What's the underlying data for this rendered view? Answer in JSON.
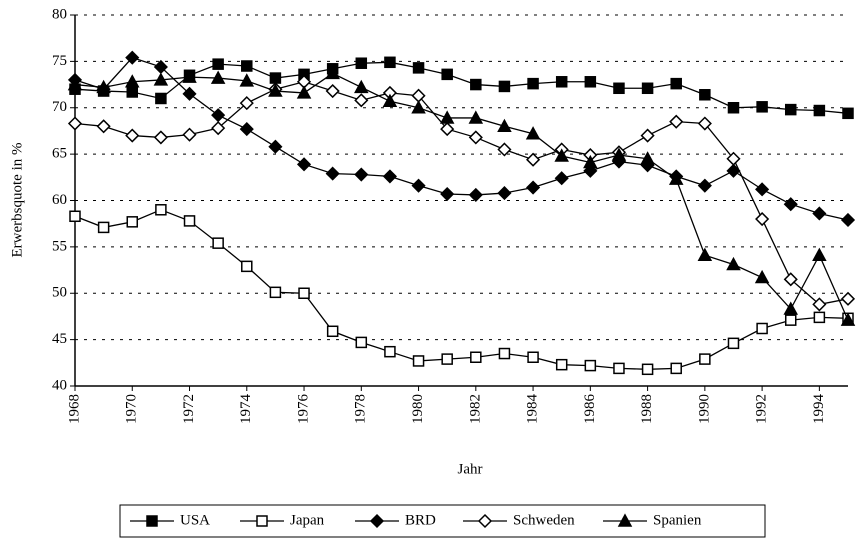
{
  "chart_data": {
    "type": "line",
    "x_label": "Jahr",
    "y_label": "Erwerbsquote in %",
    "x": [
      1968,
      1969,
      1970,
      1971,
      1972,
      1973,
      1974,
      1975,
      1976,
      1977,
      1978,
      1979,
      1980,
      1981,
      1982,
      1983,
      1984,
      1985,
      1986,
      1987,
      1988,
      1989,
      1990,
      1991,
      1992,
      1993,
      1994,
      1995
    ],
    "xlim": [
      1968,
      1995
    ],
    "xticks": [
      1968,
      1970,
      1972,
      1974,
      1976,
      1978,
      1980,
      1982,
      1984,
      1986,
      1988,
      1990,
      1992,
      1994
    ],
    "ylim": [
      40,
      80
    ],
    "yticks": [
      40,
      45,
      50,
      55,
      60,
      65,
      70,
      75,
      80
    ],
    "grid": true,
    "series": [
      {
        "name": "USA",
        "color": "#000000",
        "marker": "square-filled",
        "values": [
          72,
          71.8,
          71.7,
          71,
          73.5,
          74.7,
          74.5,
          73.2,
          73.6,
          74.2,
          74.8,
          74.9,
          74.3,
          73.6,
          72.5,
          72.3,
          72.6,
          72.8,
          72.8,
          72.1,
          72.1,
          72.6,
          71.4,
          70,
          70.1,
          69.8,
          69.7,
          69.4
        ]
      },
      {
        "name": "Japan",
        "color": "#000000",
        "marker": "square-open",
        "values": [
          58.3,
          57.1,
          57.7,
          59,
          57.8,
          55.4,
          52.9,
          50.1,
          50,
          45.9,
          44.7,
          43.7,
          42.7,
          42.9,
          43.1,
          43.5,
          43.1,
          42.3,
          42.2,
          41.9,
          41.8,
          41.9,
          42.9,
          44.6,
          46.2,
          47.1,
          47.4,
          47.3
        ]
      },
      {
        "name": "BRD",
        "color": "#000000",
        "marker": "diamond-filled",
        "values": [
          73,
          72,
          75.4,
          74.4,
          71.5,
          69.2,
          67.7,
          65.8,
          63.9,
          62.9,
          62.8,
          62.6,
          61.6,
          60.7,
          60.6,
          60.8,
          61.4,
          62.4,
          63.2,
          64.2,
          63.8,
          62.6,
          61.6,
          63.2,
          61.2,
          59.6,
          58.6,
          57.9
        ]
      },
      {
        "name": "Schweden",
        "color": "#000000",
        "marker": "diamond-open",
        "values": [
          68.3,
          68,
          67,
          66.8,
          67.1,
          67.8,
          70.5,
          72,
          72.8,
          71.8,
          70.8,
          71.6,
          71.3,
          67.7,
          66.8,
          65.5,
          64.4,
          65.5,
          64.9,
          65.2,
          67,
          68.5,
          68.3,
          64.5,
          58,
          51.5,
          48.8,
          49.4
        ]
      },
      {
        "name": "Spanien",
        "color": "#000000",
        "marker": "triangle-filled",
        "values": [
          72.5,
          72.2,
          72.8,
          73,
          73.3,
          73.2,
          72.9,
          71.8,
          71.6,
          73.7,
          72.2,
          70.7,
          70,
          68.9,
          68.9,
          68,
          67.2,
          64.8,
          64.1,
          64.9,
          64.5,
          62.3,
          54.1,
          53.1,
          51.7,
          48.3,
          54.1,
          47.1
        ]
      }
    ]
  }
}
